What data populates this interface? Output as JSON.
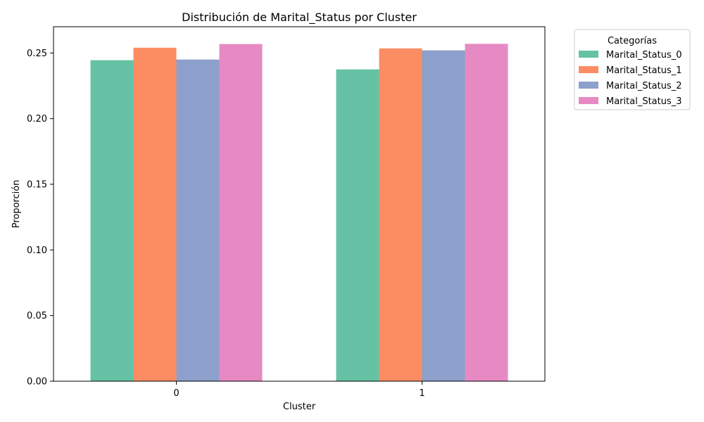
{
  "chart_data": {
    "type": "bar",
    "title": "Distribución de Marital_Status por Cluster",
    "xlabel": "Cluster",
    "ylabel": "Proporción",
    "categories": [
      "0",
      "1"
    ],
    "series": [
      {
        "name": "Marital_Status_0",
        "color": "#66c2a5",
        "values": [
          0.2445,
          0.2375
        ]
      },
      {
        "name": "Marital_Status_1",
        "color": "#fc8d62",
        "values": [
          0.254,
          0.2535
        ]
      },
      {
        "name": "Marital_Status_2",
        "color": "#8da0cb",
        "values": [
          0.245,
          0.252
        ]
      },
      {
        "name": "Marital_Status_3",
        "color": "#e78ac3",
        "values": [
          0.2568,
          0.257
        ]
      }
    ],
    "ylim": [
      0,
      0.27
    ],
    "yticks": [
      0.0,
      0.05,
      0.1,
      0.15,
      0.2,
      0.25
    ],
    "ytick_labels": [
      "0.00",
      "0.05",
      "0.10",
      "0.15",
      "0.20",
      "0.25"
    ],
    "grid": false,
    "legend": {
      "title": "Categorías",
      "placement": "outside-top-right"
    }
  }
}
